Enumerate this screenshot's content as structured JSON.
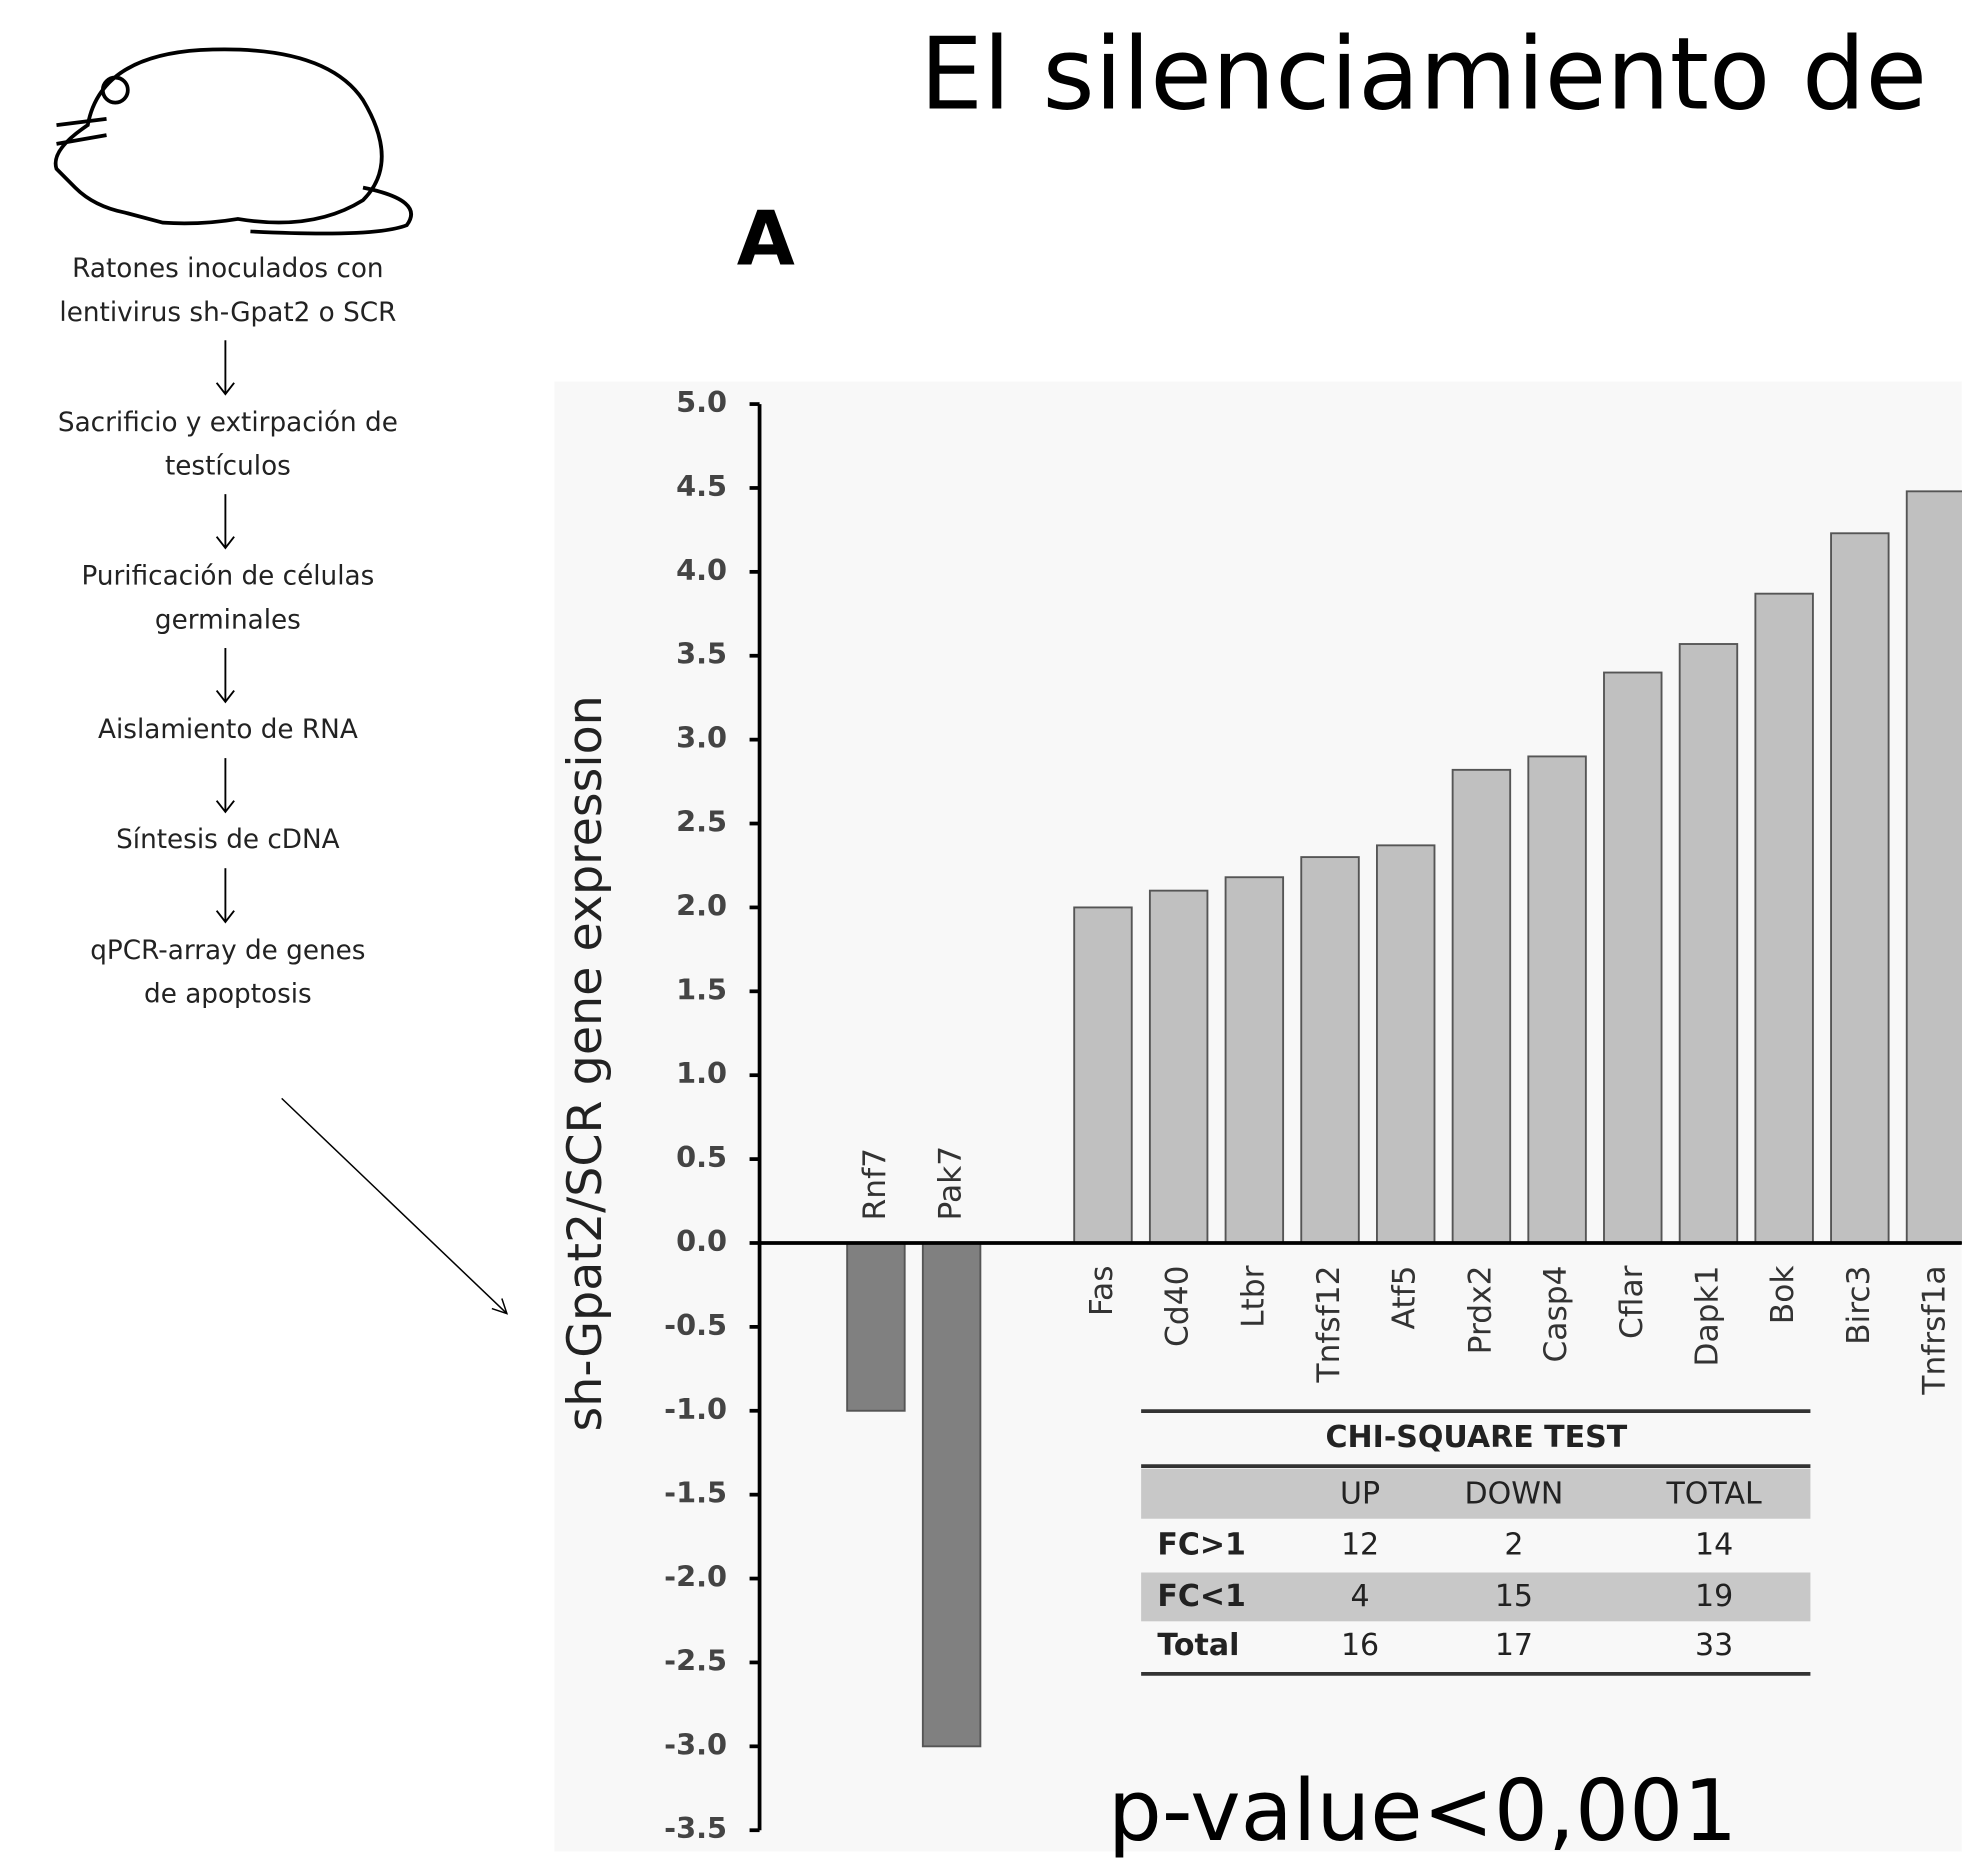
{
  "slide_title": "El silenciamiento de",
  "panel_label": "A",
  "flow_steps": [
    "Ratones inoculados con lentivirus sh-Gpat2 o SCR",
    "Sacrificio y extirpación de testículos",
    "Purificación de células germinales",
    "Aislamiento de RNA",
    "Síntesis de cDNA",
    "qPCR-array de genes de apoptosis"
  ],
  "chart_data": {
    "type": "bar",
    "ylabel": "sh-Gpat2/SCR  gene expression",
    "categories": [
      "Rnf7",
      "Pak7",
      null,
      "Fas",
      "Cd40",
      "Ltbr",
      "Tnfsf12",
      "Atf5",
      "Prdx2",
      "Casp4",
      "Cflar",
      "Dapk1",
      "Bok",
      "Birc3",
      "Tnfrsf1a"
    ],
    "values": [
      -1.0,
      -3.0,
      null,
      2.0,
      2.1,
      2.18,
      2.3,
      2.37,
      2.82,
      2.9,
      3.4,
      3.57,
      3.87,
      4.23,
      4.48
    ],
    "colors": [
      "#808080",
      "#808080",
      null,
      "#c0c0c0",
      "#c0c0c0",
      "#c0c0c0",
      "#c0c0c0",
      "#c0c0c0",
      "#c0c0c0",
      "#c0c0c0",
      "#c0c0c0",
      "#c0c0c0",
      "#c0c0c0",
      "#c0c0c0",
      "#c0c0c0"
    ],
    "ylim": [
      -3.5,
      5.0
    ],
    "yticks": [
      -3.5,
      {
        "value": -3,
        "label": "-3.0"
      },
      -2.5,
      {
        "value": -2,
        "label": "-2.0"
      },
      -1.5,
      {
        "value": -1,
        "label": "-1.0"
      },
      -0.5,
      {
        "value": 0,
        "label": "0.0"
      },
      0.5,
      {
        "value": 1,
        "label": "1.0"
      },
      1.5,
      {
        "value": 2,
        "label": "2.0"
      },
      2.5,
      {
        "value": 3,
        "label": "3.0"
      },
      3.5,
      {
        "value": 4,
        "label": "4.0"
      },
      4.5,
      {
        "value": 5,
        "label": "5.0"
      }
    ],
    "grid": false
  },
  "table": {
    "title": "CHI-SQUARE TEST",
    "header": [
      "UP",
      "DOWN",
      "TOTAL"
    ],
    "rows": [
      [
        "FC>1",
        "12",
        "2",
        "14"
      ],
      [
        "FC<1",
        "4",
        "15",
        "19"
      ],
      [
        "Total",
        "16",
        "17",
        "33"
      ]
    ]
  },
  "p_value": "p-value<0,001"
}
